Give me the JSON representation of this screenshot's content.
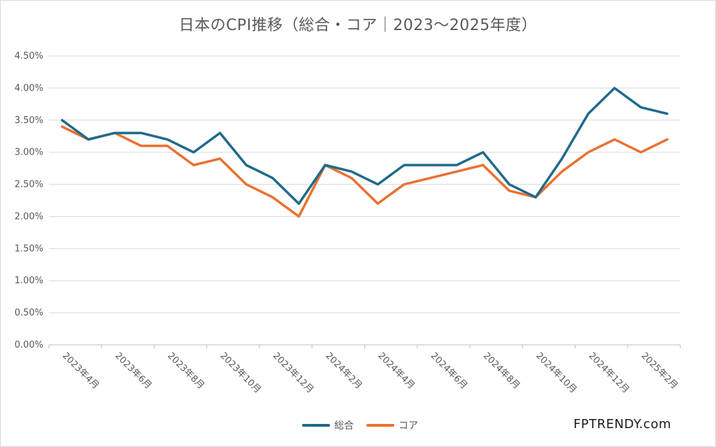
{
  "chart_data": {
    "type": "line",
    "title": "日本のCPI推移（総合・コア｜2023～2025年度）",
    "xlabel": "",
    "ylabel": "",
    "ylim": [
      0,
      4.5
    ],
    "yticks": [
      "0.00%",
      "0.50%",
      "1.00%",
      "1.50%",
      "2.00%",
      "2.50%",
      "3.00%",
      "3.50%",
      "4.00%",
      "4.50%"
    ],
    "x": [
      "2023-04",
      "2023-05",
      "2023-06",
      "2023-07",
      "2023-08",
      "2023-09",
      "2023-10",
      "2023-11",
      "2023-12",
      "2024-01",
      "2024-02",
      "2024-03",
      "2024-04",
      "2024-05",
      "2024-06",
      "2024-07",
      "2024-08",
      "2024-09",
      "2024-10",
      "2024-11",
      "2024-12",
      "2025-01",
      "2025-02",
      "2025-03"
    ],
    "xtick_labels": [
      "2023年4月",
      "2023年6月",
      "2023年8月",
      "2023年10月",
      "2023年12月",
      "2024年2月",
      "2024年4月",
      "2024年6月",
      "2024年8月",
      "2024年10月",
      "2024年12月",
      "2025年2月"
    ],
    "grid": true,
    "legend_position": "bottom",
    "series": [
      {
        "name": "総合",
        "color": "#1f6a8a",
        "values": [
          3.5,
          3.2,
          3.3,
          3.3,
          3.2,
          3.0,
          3.3,
          2.8,
          2.6,
          2.2,
          2.8,
          2.7,
          2.5,
          2.8,
          2.8,
          2.8,
          3.0,
          2.5,
          2.3,
          2.9,
          3.6,
          4.0,
          3.7,
          3.6
        ]
      },
      {
        "name": "コア",
        "color": "#e97132",
        "values": [
          3.4,
          3.2,
          3.3,
          3.1,
          3.1,
          2.8,
          2.9,
          2.5,
          2.3,
          2.0,
          2.8,
          2.6,
          2.2,
          2.5,
          2.6,
          2.7,
          2.8,
          2.4,
          2.3,
          2.7,
          3.0,
          3.2,
          3.0,
          3.2
        ]
      }
    ]
  },
  "brand": "FPTRENDY.com"
}
